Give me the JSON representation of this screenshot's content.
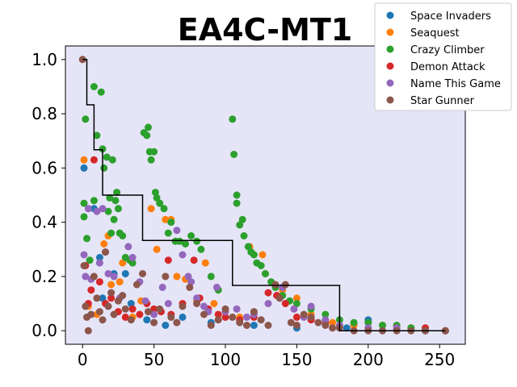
{
  "chart_data": {
    "type": "scatter",
    "title": "EA4C-MT1",
    "xlabel": "",
    "ylabel": "",
    "xlim": [
      -12,
      268
    ],
    "ylim": [
      -0.05,
      1.05
    ],
    "xticks": [
      0,
      50,
      100,
      150,
      200,
      250
    ],
    "yticks": [
      0.0,
      0.2,
      0.4,
      0.6,
      0.8,
      1.0
    ],
    "ytick_labels": [
      "0.0",
      "0.2",
      "0.4",
      "0.6",
      "0.8",
      "1.0"
    ],
    "legend_position": "top-right",
    "plot_background": "#e5e5f7",
    "series": [
      {
        "name": "Space Invaders",
        "color": "#1f77b4",
        "points": [
          [
            1,
            0.6
          ],
          [
            8,
            0.45
          ],
          [
            12,
            0.27
          ],
          [
            14,
            0.12
          ],
          [
            22,
            0.21
          ],
          [
            30,
            0.21
          ],
          [
            34,
            0.1
          ],
          [
            45,
            0.04
          ],
          [
            58,
            0.02
          ],
          [
            70,
            0.05
          ],
          [
            90,
            0.03
          ],
          [
            120,
            0.02
          ],
          [
            150,
            0.01
          ],
          [
            185,
            0.01
          ],
          [
            200,
            0.04
          ],
          [
            230,
            0.01
          ],
          [
            254,
            0.0
          ]
        ]
      },
      {
        "name": "Seaquest",
        "color": "#ff7f0e",
        "points": [
          [
            1,
            0.63
          ],
          [
            4,
            0.09
          ],
          [
            10,
            0.06
          ],
          [
            15,
            0.32
          ],
          [
            18,
            0.35
          ],
          [
            20,
            0.17
          ],
          [
            26,
            0.18
          ],
          [
            28,
            0.25
          ],
          [
            35,
            0.05
          ],
          [
            41,
            0.11
          ],
          [
            48,
            0.45
          ],
          [
            52,
            0.3
          ],
          [
            58,
            0.41
          ],
          [
            62,
            0.41
          ],
          [
            66,
            0.2
          ],
          [
            72,
            0.19
          ],
          [
            80,
            0.11
          ],
          [
            86,
            0.25
          ],
          [
            92,
            0.1
          ],
          [
            100,
            0.07
          ],
          [
            110,
            0.05
          ],
          [
            117,
            0.31
          ],
          [
            126,
            0.28
          ],
          [
            128,
            0.21
          ],
          [
            140,
            0.15
          ],
          [
            150,
            0.12
          ],
          [
            160,
            0.06
          ],
          [
            175,
            0.03
          ],
          [
            190,
            0.02
          ],
          [
            210,
            0.02
          ],
          [
            230,
            0.01
          ],
          [
            254,
            0.0
          ]
        ]
      },
      {
        "name": "Crazy Climber",
        "color": "#2ca02c",
        "points": [
          [
            1,
            0.47
          ],
          [
            1,
            0.42
          ],
          [
            2,
            0.78
          ],
          [
            3,
            0.34
          ],
          [
            5,
            0.26
          ],
          [
            8,
            0.9
          ],
          [
            8,
            0.48
          ],
          [
            10,
            0.72
          ],
          [
            13,
            0.88
          ],
          [
            14,
            0.67
          ],
          [
            15,
            0.6
          ],
          [
            17,
            0.64
          ],
          [
            18,
            0.44
          ],
          [
            19,
            0.49
          ],
          [
            20,
            0.36
          ],
          [
            21,
            0.63
          ],
          [
            22,
            0.41
          ],
          [
            23,
            0.48
          ],
          [
            24,
            0.51
          ],
          [
            25,
            0.45
          ],
          [
            26,
            0.36
          ],
          [
            28,
            0.35
          ],
          [
            30,
            0.27
          ],
          [
            33,
            0.26
          ],
          [
            35,
            0.25
          ],
          [
            43,
            0.73
          ],
          [
            45,
            0.72
          ],
          [
            46,
            0.75
          ],
          [
            47,
            0.66
          ],
          [
            48,
            0.63
          ],
          [
            50,
            0.66
          ],
          [
            51,
            0.51
          ],
          [
            52,
            0.49
          ],
          [
            54,
            0.47
          ],
          [
            57,
            0.45
          ],
          [
            60,
            0.36
          ],
          [
            62,
            0.4
          ],
          [
            65,
            0.33
          ],
          [
            68,
            0.33
          ],
          [
            72,
            0.32
          ],
          [
            76,
            0.35
          ],
          [
            80,
            0.33
          ],
          [
            83,
            0.3
          ],
          [
            90,
            0.2
          ],
          [
            95,
            0.15
          ],
          [
            105,
            0.78
          ],
          [
            106,
            0.65
          ],
          [
            108,
            0.5
          ],
          [
            108,
            0.47
          ],
          [
            110,
            0.39
          ],
          [
            112,
            0.41
          ],
          [
            113,
            0.35
          ],
          [
            116,
            0.31
          ],
          [
            118,
            0.29
          ],
          [
            120,
            0.28
          ],
          [
            122,
            0.25
          ],
          [
            125,
            0.24
          ],
          [
            128,
            0.21
          ],
          [
            132,
            0.18
          ],
          [
            135,
            0.16
          ],
          [
            140,
            0.13
          ],
          [
            145,
            0.11
          ],
          [
            150,
            0.1
          ],
          [
            160,
            0.08
          ],
          [
            170,
            0.06
          ],
          [
            180,
            0.04
          ],
          [
            190,
            0.03
          ],
          [
            200,
            0.03
          ],
          [
            210,
            0.02
          ],
          [
            220,
            0.02
          ],
          [
            230,
            0.01
          ],
          [
            240,
            0.01
          ],
          [
            254,
            0.0
          ]
        ]
      },
      {
        "name": "Demon Attack",
        "color": "#d62728",
        "points": [
          [
            2,
            0.24
          ],
          [
            4,
            0.1
          ],
          [
            6,
            0.15
          ],
          [
            8,
            0.63
          ],
          [
            12,
            0.18
          ],
          [
            16,
            0.1
          ],
          [
            20,
            0.12
          ],
          [
            25,
            0.07
          ],
          [
            30,
            0.05
          ],
          [
            35,
            0.08
          ],
          [
            40,
            0.06
          ],
          [
            45,
            0.1
          ],
          [
            50,
            0.08
          ],
          [
            55,
            0.07
          ],
          [
            60,
            0.26
          ],
          [
            62,
            0.06
          ],
          [
            70,
            0.1
          ],
          [
            78,
            0.26
          ],
          [
            82,
            0.12
          ],
          [
            88,
            0.08
          ],
          [
            95,
            0.06
          ],
          [
            100,
            0.05
          ],
          [
            110,
            0.04
          ],
          [
            120,
            0.05
          ],
          [
            130,
            0.14
          ],
          [
            136,
            0.13
          ],
          [
            142,
            0.1
          ],
          [
            150,
            0.05
          ],
          [
            160,
            0.04
          ],
          [
            170,
            0.03
          ],
          [
            180,
            0.02
          ],
          [
            200,
            0.01
          ],
          [
            220,
            0.01
          ],
          [
            240,
            0.01
          ],
          [
            254,
            0.0
          ]
        ]
      },
      {
        "name": "Name This Game",
        "color": "#9467bd",
        "points": [
          [
            1,
            0.28
          ],
          [
            2,
            0.2
          ],
          [
            4,
            0.45
          ],
          [
            6,
            0.19
          ],
          [
            10,
            0.44
          ],
          [
            12,
            0.25
          ],
          [
            14,
            0.45
          ],
          [
            16,
            0.29
          ],
          [
            18,
            0.21
          ],
          [
            22,
            0.2
          ],
          [
            26,
            0.12
          ],
          [
            32,
            0.31
          ],
          [
            35,
            0.27
          ],
          [
            40,
            0.18
          ],
          [
            44,
            0.11
          ],
          [
            50,
            0.06
          ],
          [
            56,
            0.16
          ],
          [
            60,
            0.1
          ],
          [
            66,
            0.37
          ],
          [
            70,
            0.28
          ],
          [
            74,
            0.2
          ],
          [
            76,
            0.18
          ],
          [
            80,
            0.12
          ],
          [
            85,
            0.09
          ],
          [
            88,
            0.07
          ],
          [
            94,
            0.16
          ],
          [
            100,
            0.07
          ],
          [
            108,
            0.08
          ],
          [
            115,
            0.05
          ],
          [
            120,
            0.06
          ],
          [
            130,
            0.1
          ],
          [
            140,
            0.16
          ],
          [
            148,
            0.08
          ],
          [
            155,
            0.05
          ],
          [
            160,
            0.09
          ],
          [
            170,
            0.04
          ],
          [
            180,
            0.02
          ],
          [
            200,
            0.01
          ],
          [
            220,
            0.01
          ],
          [
            240,
            0.0
          ],
          [
            254,
            0.0
          ]
        ]
      },
      {
        "name": "Star Gunner",
        "color": "#8c564b",
        "points": [
          [
            0,
            1.0
          ],
          [
            1,
            0.24
          ],
          [
            2,
            0.09
          ],
          [
            3,
            0.05
          ],
          [
            4,
            0.0
          ],
          [
            6,
            0.06
          ],
          [
            8,
            0.2
          ],
          [
            10,
            0.12
          ],
          [
            12,
            0.07
          ],
          [
            14,
            0.04
          ],
          [
            16,
            0.29
          ],
          [
            18,
            0.09
          ],
          [
            20,
            0.14
          ],
          [
            22,
            0.06
          ],
          [
            25,
            0.11
          ],
          [
            28,
            0.13
          ],
          [
            30,
            0.08
          ],
          [
            34,
            0.04
          ],
          [
            38,
            0.17
          ],
          [
            42,
            0.21
          ],
          [
            46,
            0.07
          ],
          [
            50,
            0.03
          ],
          [
            54,
            0.08
          ],
          [
            58,
            0.2
          ],
          [
            62,
            0.05
          ],
          [
            66,
            0.03
          ],
          [
            70,
            0.09
          ],
          [
            75,
            0.16
          ],
          [
            80,
            0.1
          ],
          [
            85,
            0.06
          ],
          [
            90,
            0.02
          ],
          [
            95,
            0.04
          ],
          [
            100,
            0.08
          ],
          [
            105,
            0.05
          ],
          [
            110,
            0.03
          ],
          [
            115,
            0.02
          ],
          [
            120,
            0.07
          ],
          [
            125,
            0.04
          ],
          [
            130,
            0.02
          ],
          [
            135,
            0.17
          ],
          [
            138,
            0.12
          ],
          [
            142,
            0.17
          ],
          [
            146,
            0.03
          ],
          [
            150,
            0.02
          ],
          [
            155,
            0.06
          ],
          [
            160,
            0.05
          ],
          [
            165,
            0.03
          ],
          [
            170,
            0.02
          ],
          [
            175,
            0.01
          ],
          [
            180,
            0.01
          ],
          [
            190,
            0.0
          ],
          [
            200,
            0.0
          ],
          [
            210,
            0.0
          ],
          [
            220,
            0.0
          ],
          [
            230,
            0.0
          ],
          [
            240,
            0.0
          ],
          [
            254,
            0.0
          ]
        ]
      }
    ],
    "step_line": {
      "color": "#000000",
      "points": [
        [
          0,
          1.0
        ],
        [
          3,
          1.0
        ],
        [
          3,
          0.833
        ],
        [
          8,
          0.833
        ],
        [
          8,
          0.667
        ],
        [
          14,
          0.667
        ],
        [
          14,
          0.5
        ],
        [
          42,
          0.5
        ],
        [
          42,
          0.333
        ],
        [
          105,
          0.333
        ],
        [
          105,
          0.167
        ],
        [
          180,
          0.167
        ],
        [
          180,
          0.0
        ],
        [
          254,
          0.0
        ]
      ]
    }
  }
}
